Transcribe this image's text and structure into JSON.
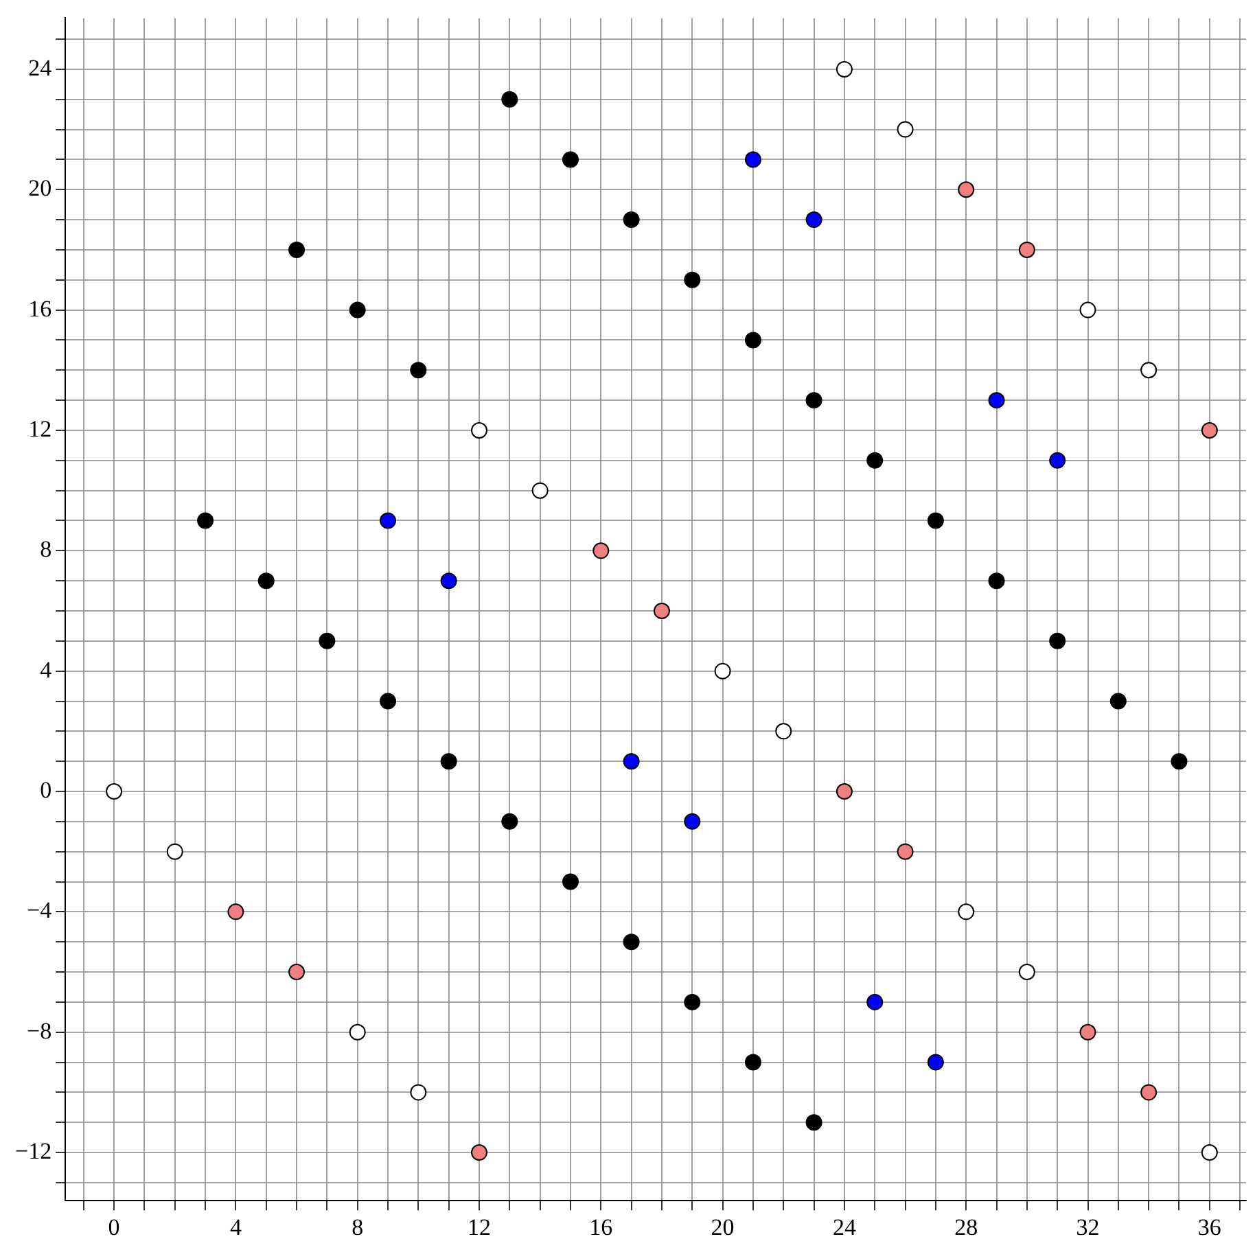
{
  "chart_data": {
    "type": "scatter",
    "marker": "circle",
    "grid": true,
    "legend": false,
    "xlim": [
      -1.6,
      37.2
    ],
    "ylim": [
      -13.6,
      25.7
    ],
    "xticks": [
      {
        "value": -1,
        "label": null
      },
      0,
      {
        "value": 1,
        "label": null
      },
      {
        "value": 2,
        "label": null
      },
      {
        "value": 3,
        "label": null
      },
      4,
      {
        "value": 5,
        "label": null
      },
      {
        "value": 6,
        "label": null
      },
      {
        "value": 7,
        "label": null
      },
      8,
      {
        "value": 9,
        "label": null
      },
      {
        "value": 10,
        "label": null
      },
      {
        "value": 11,
        "label": null
      },
      12,
      {
        "value": 13,
        "label": null
      },
      {
        "value": 14,
        "label": null
      },
      {
        "value": 15,
        "label": null
      },
      16,
      {
        "value": 17,
        "label": null
      },
      {
        "value": 18,
        "label": null
      },
      {
        "value": 19,
        "label": null
      },
      20,
      {
        "value": 21,
        "label": null
      },
      {
        "value": 22,
        "label": null
      },
      {
        "value": 23,
        "label": null
      },
      24,
      {
        "value": 25,
        "label": null
      },
      {
        "value": 26,
        "label": null
      },
      {
        "value": 27,
        "label": null
      },
      28,
      {
        "value": 29,
        "label": null
      },
      {
        "value": 30,
        "label": null
      },
      {
        "value": 31,
        "label": null
      },
      32,
      {
        "value": 33,
        "label": null
      },
      {
        "value": 34,
        "label": null
      },
      {
        "value": 35,
        "label": null
      },
      36,
      {
        "value": 37,
        "label": null
      }
    ],
    "yticks": [
      {
        "value": -13,
        "label": null
      },
      {
        "value": -12,
        "label": "−12"
      },
      {
        "value": -11,
        "label": null
      },
      {
        "value": -10,
        "label": null
      },
      {
        "value": -9,
        "label": null
      },
      {
        "value": -8,
        "label": "−8"
      },
      {
        "value": -7,
        "label": null
      },
      {
        "value": -6,
        "label": null
      },
      {
        "value": -5,
        "label": null
      },
      {
        "value": -4,
        "label": "−4"
      },
      {
        "value": -3,
        "label": null
      },
      {
        "value": -2,
        "label": null
      },
      {
        "value": -1,
        "label": null
      },
      0,
      {
        "value": 1,
        "label": null
      },
      {
        "value": 2,
        "label": null
      },
      {
        "value": 3,
        "label": null
      },
      4,
      {
        "value": 5,
        "label": null
      },
      {
        "value": 6,
        "label": null
      },
      {
        "value": 7,
        "label": null
      },
      8,
      {
        "value": 9,
        "label": null
      },
      {
        "value": 10,
        "label": null
      },
      {
        "value": 11,
        "label": null
      },
      12,
      {
        "value": 13,
        "label": null
      },
      {
        "value": 14,
        "label": null
      },
      {
        "value": 15,
        "label": null
      },
      16,
      {
        "value": 17,
        "label": null
      },
      {
        "value": 18,
        "label": null
      },
      {
        "value": 19,
        "label": null
      },
      20,
      {
        "value": 21,
        "label": null
      },
      {
        "value": 22,
        "label": null
      },
      {
        "value": 23,
        "label": null
      },
      24,
      {
        "value": 25,
        "label": null
      }
    ],
    "series": [
      {
        "color": "#ffffff",
        "x": [
          0,
          2,
          8,
          10,
          12,
          14,
          20,
          22,
          24,
          26,
          28,
          30,
          32,
          34,
          36
        ],
        "values": [
          0,
          -2,
          -8,
          -10,
          12,
          10,
          4,
          2,
          24,
          22,
          -4,
          -6,
          16,
          14,
          -12
        ]
      },
      {
        "color": "#f08080",
        "x": [
          4,
          6,
          12,
          16,
          18,
          24,
          26,
          28,
          30,
          32,
          34,
          36
        ],
        "values": [
          -4,
          -6,
          -12,
          8,
          6,
          0,
          -2,
          20,
          18,
          -8,
          -10,
          12
        ]
      },
      {
        "color": "#0000ff",
        "x": [
          9,
          11,
          17,
          19,
          21,
          23,
          25,
          27,
          29,
          31
        ],
        "values": [
          9,
          7,
          1,
          -1,
          21,
          19,
          -7,
          -9,
          13,
          11
        ]
      },
      {
        "color": "#000000",
        "x": [
          3,
          5,
          7,
          9,
          11,
          13,
          15,
          17,
          19,
          21,
          23,
          6,
          8,
          10,
          13,
          15,
          17,
          19,
          21,
          23,
          25,
          27,
          29,
          31,
          33,
          35
        ],
        "values": [
          9,
          7,
          5,
          3,
          1,
          -1,
          -3,
          -5,
          -7,
          -9,
          -11,
          18,
          16,
          14,
          23,
          21,
          19,
          17,
          15,
          13,
          11,
          9,
          7,
          5,
          3,
          1
        ]
      }
    ]
  }
}
